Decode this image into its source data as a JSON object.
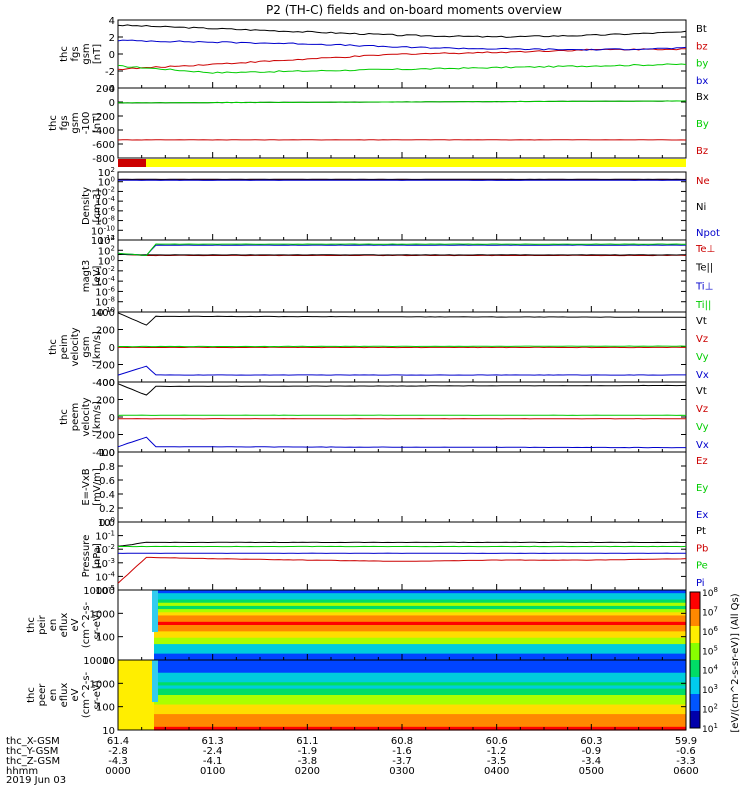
{
  "title": "P2 (TH-C) fields and on-board moments overview",
  "date_label": "2019 Jun 03",
  "ephemeris": {
    "labels": [
      "thc_X-GSM",
      "thc_Y-GSM",
      "thc_Z-GSM",
      "hhmm"
    ],
    "rows": [
      [
        "61.4",
        "61.3",
        "61.1",
        "60.8",
        "60.6",
        "60.3",
        "59.9"
      ],
      [
        "-2.8",
        "-2.4",
        "-1.9",
        "-1.6",
        "-1.2",
        "-0.9",
        "-0.6"
      ],
      [
        "-4.3",
        "-4.1",
        "-3.8",
        "-3.7",
        "-3.5",
        "-3.4",
        "-3.3"
      ],
      [
        "0000",
        "0100",
        "0200",
        "0300",
        "0400",
        "0500",
        "0600"
      ]
    ]
  },
  "colorbar": {
    "label": "[eV/(cm^2-s-sr-eV)] (All Qs)",
    "tick_labels": [
      "10^8",
      "10^7",
      "10^6",
      "10^5",
      "10^4",
      "10^3",
      "10^2",
      "10^1"
    ]
  },
  "colors": {
    "black": "#000000",
    "red": "#cc0000",
    "blue": "#0000cc",
    "green": "#00cc00",
    "yellow": "#ffff00"
  },
  "chart_data": [
    {
      "type": "line",
      "ylabel": [
        "thc",
        "fgs",
        "gsm",
        "[nT]"
      ],
      "ylim": [
        -4,
        4
      ],
      "ytick_labels": [
        "4",
        "2",
        "0",
        "-2",
        "-4"
      ],
      "series": [
        {
          "name": "Bt",
          "color": "#000000",
          "x": [
            0,
            1,
            2,
            3,
            4,
            5,
            6
          ],
          "values": [
            3.4,
            3.0,
            2.6,
            2.2,
            2.0,
            2.2,
            2.6
          ]
        },
        {
          "name": "bz",
          "color": "#cc0000",
          "x": [
            0,
            1,
            2,
            3,
            4,
            5,
            6
          ],
          "values": [
            -1.8,
            -1.2,
            -0.6,
            0.0,
            0.2,
            0.5,
            0.6
          ]
        },
        {
          "name": "by",
          "color": "#00cc00",
          "x": [
            0,
            1,
            2,
            3,
            4,
            5,
            6
          ],
          "values": [
            -1.4,
            -2.2,
            -2.0,
            -1.8,
            -1.6,
            -1.4,
            -1.2
          ]
        },
        {
          "name": "bx",
          "color": "#0000cc",
          "x": [
            0,
            1,
            2,
            3,
            4,
            5,
            6
          ],
          "values": [
            1.6,
            1.4,
            1.2,
            0.8,
            0.6,
            0.5,
            0.7
          ]
        }
      ]
    },
    {
      "type": "line",
      "ylabel": [
        "thc",
        "fgs",
        "gsm",
        "-100",
        "[nT]"
      ],
      "ylim": [
        -880,
        200
      ],
      "ytick_labels": [
        "200",
        "0",
        "-200",
        "-400",
        "-600",
        "-800"
      ],
      "series": [
        {
          "name": "Bx",
          "color": "#000000",
          "x": [
            0,
            6
          ],
          "values": [
            -30,
            0
          ]
        },
        {
          "name": "By",
          "color": "#00cc00",
          "x": [
            0,
            6
          ],
          "values": [
            -30,
            0
          ]
        },
        {
          "name": "Bz",
          "color": "#cc0000",
          "x": [
            0,
            6
          ],
          "values": [
            -600,
            -600
          ]
        }
      ]
    },
    {
      "type": "line",
      "ylabel": [
        "Density",
        "[cm-3]"
      ],
      "ylim": [
        -12,
        2
      ],
      "ytick_labels": [
        "10^2",
        "10^0",
        "10^-2",
        "10^-4",
        "10^-6",
        "10^-8",
        "10^-10",
        "10^-12"
      ],
      "series": [
        {
          "name": "Ne",
          "color": "#cc0000",
          "x": [
            0,
            6
          ],
          "values": [
            0.4,
            0.4
          ]
        },
        {
          "name": "Ni",
          "color": "#000000",
          "x": [
            0,
            6
          ],
          "values": [
            0.5,
            0.5
          ]
        },
        {
          "name": "Npot",
          "color": "#0000cc",
          "x": [
            0,
            6
          ],
          "values": [
            0.3,
            0.3
          ]
        }
      ]
    },
    {
      "type": "line",
      "ylabel": [
        "magt3",
        "[eV]"
      ],
      "ylim": [
        -10,
        4
      ],
      "ytick_labels": [
        "10^4",
        "10^2",
        "10^0",
        "10^-2",
        "10^-4",
        "10^-6",
        "10^-8",
        "10^-10"
      ],
      "series": [
        {
          "name": "Te⊥",
          "color": "#cc0000",
          "x": [
            0,
            0.3,
            6
          ],
          "values": [
            1.2,
            1.0,
            1.0
          ]
        },
        {
          "name": "Te||",
          "color": "#000000",
          "x": [
            0,
            0.3,
            6
          ],
          "values": [
            1.2,
            1.1,
            1.1
          ]
        },
        {
          "name": "Ti⊥",
          "color": "#0000cc",
          "x": [
            0,
            0.3,
            0.4,
            6
          ],
          "values": [
            1.4,
            1.0,
            3.0,
            3.0
          ]
        },
        {
          "name": "Ti||",
          "color": "#00cc00",
          "x": [
            0,
            0.3,
            0.4,
            6
          ],
          "values": [
            1.4,
            1.0,
            3.2,
            3.2
          ]
        }
      ]
    },
    {
      "type": "line",
      "ylabel": [
        "thc",
        "peim",
        "velocity",
        "gsm",
        "[km/s]"
      ],
      "ylim": [
        -400,
        400
      ],
      "ytick_labels": [
        "400",
        "200",
        "0",
        "-200",
        "-400"
      ],
      "series": [
        {
          "name": "Vt",
          "color": "#000000",
          "x": [
            0,
            0.3,
            0.4,
            6
          ],
          "values": [
            390,
            250,
            350,
            340
          ]
        },
        {
          "name": "Vz",
          "color": "#cc0000",
          "x": [
            0,
            6
          ],
          "values": [
            -5,
            -5
          ]
        },
        {
          "name": "Vy",
          "color": "#00cc00",
          "x": [
            0,
            6
          ],
          "values": [
            5,
            10
          ]
        },
        {
          "name": "Vx",
          "color": "#0000cc",
          "x": [
            0,
            0.3,
            0.4,
            6
          ],
          "values": [
            -320,
            -220,
            -320,
            -320
          ]
        }
      ]
    },
    {
      "type": "line",
      "ylabel": [
        "thc",
        "peem",
        "velocity",
        "[km/s]"
      ],
      "ylim": [
        -400,
        400
      ],
      "ytick_labels": [
        "400",
        "200",
        "0",
        "-200",
        "-400"
      ],
      "series": [
        {
          "name": "Vt",
          "color": "#000000",
          "x": [
            0,
            0.3,
            0.4,
            6
          ],
          "values": [
            380,
            250,
            350,
            360
          ]
        },
        {
          "name": "Vz",
          "color": "#cc0000",
          "x": [
            0,
            6
          ],
          "values": [
            -20,
            -20
          ]
        },
        {
          "name": "Vy",
          "color": "#00cc00",
          "x": [
            0,
            6
          ],
          "values": [
            20,
            20
          ]
        },
        {
          "name": "Vx",
          "color": "#0000cc",
          "x": [
            0,
            0.3,
            0.4,
            6
          ],
          "values": [
            -340,
            -230,
            -340,
            -350
          ]
        }
      ]
    },
    {
      "type": "line",
      "ylabel": [
        "E=-VxB",
        "[mV/m]"
      ],
      "ylim": [
        0,
        1
      ],
      "ytick_labels": [
        "1.0",
        "0.8",
        "0.6",
        "0.4",
        "0.2",
        "0.0"
      ],
      "series": [
        {
          "name": "Ez",
          "color": "#cc0000",
          "x": [],
          "values": []
        },
        {
          "name": "Ey",
          "color": "#00cc00",
          "x": [],
          "values": []
        },
        {
          "name": "Ex",
          "color": "#0000cc",
          "x": [],
          "values": []
        }
      ]
    },
    {
      "type": "line",
      "ylabel": [
        "Pressure",
        "[nPa]"
      ],
      "ylim": [
        -5,
        0
      ],
      "ytick_labels": [
        "10^0",
        "10^-1",
        "10^-2",
        "10^-3",
        "10^-4",
        "10^-5"
      ],
      "series": [
        {
          "name": "Pt",
          "color": "#000000",
          "x": [
            0,
            0.3,
            6
          ],
          "values": [
            -1.8,
            -1.5,
            -1.5
          ]
        },
        {
          "name": "Pb",
          "color": "#cc0000",
          "x": [
            0,
            0.3,
            1,
            2,
            3,
            4,
            5,
            6
          ],
          "values": [
            -4.5,
            -2.6,
            -2.7,
            -2.8,
            -2.9,
            -2.8,
            -2.8,
            -2.7
          ]
        },
        {
          "name": "Pe",
          "color": "#00cc00",
          "x": [
            0,
            6
          ],
          "values": [
            -1.8,
            -1.8
          ]
        },
        {
          "name": "Pi",
          "color": "#0000cc",
          "x": [
            0,
            6
          ],
          "values": [
            -2.3,
            -2.3
          ]
        }
      ]
    },
    {
      "type": "heatmap",
      "ylabel": [
        "thc",
        "peir",
        "en",
        "eflux",
        "eV",
        "(cm^2-s-",
        "sr-eV)"
      ],
      "ylim": [
        1,
        4.3
      ],
      "ytick_labels": [
        "10000",
        "1000",
        "100",
        "10"
      ],
      "series": []
    },
    {
      "type": "heatmap",
      "ylabel": [
        "thc",
        "peer",
        "en",
        "eflux",
        "eV",
        "(cm^2-s-",
        "sr-eV)"
      ],
      "ylim": [
        0.8,
        4.3
      ],
      "ytick_labels": [
        "10000",
        "1000",
        "100",
        "10"
      ],
      "series": []
    }
  ]
}
